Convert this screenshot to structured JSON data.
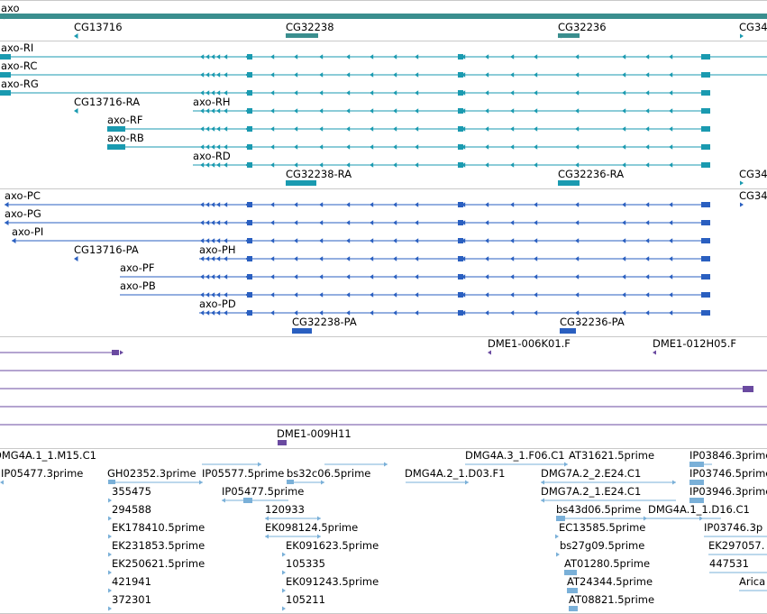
{
  "colors": {
    "gene": "#3a8e8e",
    "transcript": "#1a9ab0",
    "protein": "#2a5fc0",
    "clone": "#6a4aa0",
    "est": "#7ab0d8",
    "separator": "#c8c8c8"
  },
  "gene_track": {
    "items": [
      {
        "name": "axo"
      },
      {
        "name": "CG13716"
      },
      {
        "name": "CG32238"
      },
      {
        "name": "CG32236"
      },
      {
        "name": "CG34"
      }
    ]
  },
  "transcript_track": {
    "items": [
      {
        "name": "axo-RI"
      },
      {
        "name": "axo-RC"
      },
      {
        "name": "axo-RG"
      },
      {
        "name": "CG13716-RA"
      },
      {
        "name": "axo-RH"
      },
      {
        "name": "axo-RF"
      },
      {
        "name": "axo-RB"
      },
      {
        "name": "axo-RD"
      },
      {
        "name": "CG32238-RA"
      },
      {
        "name": "CG32236-RA"
      },
      {
        "name": "CG34"
      }
    ]
  },
  "protein_track": {
    "items": [
      {
        "name": "axo-PC"
      },
      {
        "name": "axo-PG"
      },
      {
        "name": "axo-PI"
      },
      {
        "name": "CG13716-PA"
      },
      {
        "name": "axo-PH"
      },
      {
        "name": "axo-PF"
      },
      {
        "name": "axo-PB"
      },
      {
        "name": "axo-PD"
      },
      {
        "name": "CG32238-PA"
      },
      {
        "name": "CG32236-PA"
      },
      {
        "name": "CG34"
      }
    ]
  },
  "clone_track": {
    "items": [
      {
        "name": "DME1-006K01.F"
      },
      {
        "name": "DME1-012H05.F"
      },
      {
        "name": "DME1-009H11"
      }
    ]
  },
  "est_track": {
    "items": [
      {
        "name": "DMG4A.1_1.M15.C1"
      },
      {
        "name": "IP05477.3prime"
      },
      {
        "name": "GH02352.3prime"
      },
      {
        "name": "IP05577.5prime"
      },
      {
        "name": "bs32c06.5prime"
      },
      {
        "name": "DMG4A.2_1.D03.F1"
      },
      {
        "name": "DMG4A.3_1.F06.C1"
      },
      {
        "name": "AT31621.5prime"
      },
      {
        "name": "IP03846.3prime"
      },
      {
        "name": "IP03746.5prime"
      },
      {
        "name": "DMG7A.2_2.E24.C1"
      },
      {
        "name": "IP03946.3prime"
      },
      {
        "name": "355475"
      },
      {
        "name": "IP05477.5prime"
      },
      {
        "name": "DMG7A.2_1.E24.C1"
      },
      {
        "name": "294588"
      },
      {
        "name": "120933"
      },
      {
        "name": "bs43d06.5prime"
      },
      {
        "name": "DMG4A.1_1.D16.C1"
      },
      {
        "name": "EK178410.5prime"
      },
      {
        "name": "EK098124.5prime"
      },
      {
        "name": "EC13585.5prime"
      },
      {
        "name": "IP03746.3p"
      },
      {
        "name": "EK231853.5prime"
      },
      {
        "name": "EK091623.5prime"
      },
      {
        "name": "bs27g09.5prime"
      },
      {
        "name": "EK297057."
      },
      {
        "name": "EK250621.5prime"
      },
      {
        "name": "105335"
      },
      {
        "name": "AT01280.5prime"
      },
      {
        "name": "447531"
      },
      {
        "name": "421941"
      },
      {
        "name": "EK091243.5prime"
      },
      {
        "name": "AT24344.5prime"
      },
      {
        "name": "Arica"
      },
      {
        "name": "372301"
      },
      {
        "name": "105211"
      },
      {
        "name": "AT08821.5prime"
      }
    ]
  }
}
